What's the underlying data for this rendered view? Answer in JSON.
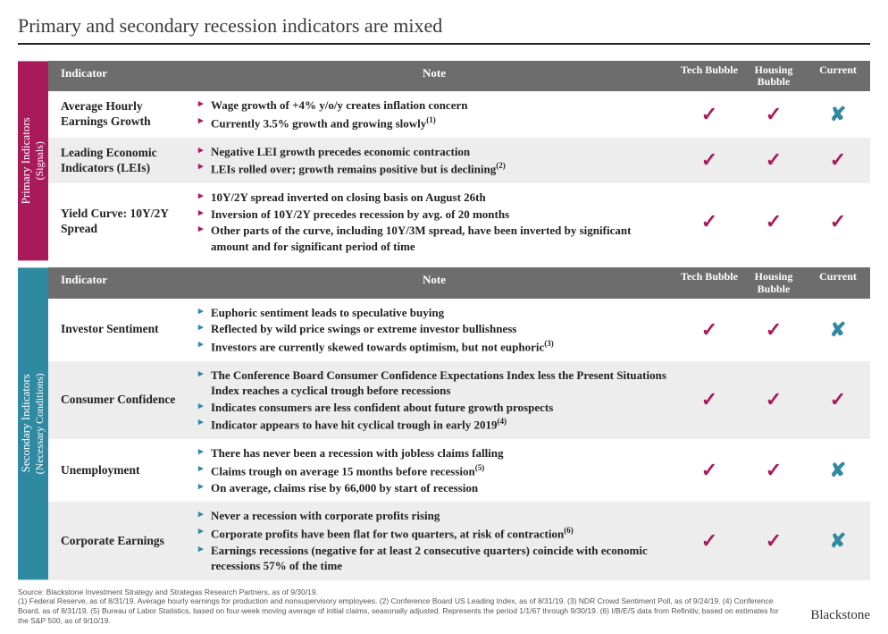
{
  "title": "Primary and secondary recession indicators are mixed",
  "headers": {
    "indicator": "Indicator",
    "note": "Note",
    "tech": "Tech Bubble",
    "housing": "Housing Bubble",
    "current": "Current"
  },
  "marks": {
    "check_glyph": "✓",
    "cross_glyph": "✘",
    "check_color": "#a91a5b",
    "cross_color": "#2f89a0"
  },
  "colors": {
    "primary_sidebar": "#a91a5b",
    "secondary_sidebar": "#2f89a0",
    "header_bg": "#6d6d6d",
    "alt_row_bg": "#ededed"
  },
  "groups": {
    "primary": {
      "sidebar_main": "Primary Indicators",
      "sidebar_sub": "(Signals)",
      "rows": [
        {
          "indicator": "Average Hourly Earnings Growth",
          "notes": [
            {
              "text": "Wage growth of +4% y/o/y creates inflation concern"
            },
            {
              "text": "Currently 3.5% growth and growing slowly",
              "sup": "(1)"
            }
          ],
          "tech": "check",
          "housing": "check",
          "current": "cross"
        },
        {
          "indicator": "Leading Economic Indicators (LEIs)",
          "notes": [
            {
              "text": "Negative LEI growth precedes economic contraction"
            },
            {
              "text": "LEIs rolled over; growth remains positive but is declining",
              "sup": "(2)"
            }
          ],
          "tech": "check",
          "housing": "check",
          "current": "check"
        },
        {
          "indicator": "Yield Curve: 10Y/2Y Spread",
          "notes": [
            {
              "text": "10Y/2Y spread inverted on closing basis on August 26th"
            },
            {
              "text": "Inversion of 10Y/2Y precedes recession by avg. of 20 months",
              "bold": true
            },
            {
              "text": "Other parts of the curve, including 10Y/3M spread, have been inverted by significant amount and for significant period of time"
            }
          ],
          "tech": "check",
          "housing": "check",
          "current": "check"
        }
      ]
    },
    "secondary": {
      "sidebar_main": "Secondary Indicators",
      "sidebar_sub": "(Necessary Conditions)",
      "rows": [
        {
          "indicator": "Investor Sentiment",
          "notes": [
            {
              "text": "Euphoric sentiment leads to speculative buying"
            },
            {
              "text": "Reflected by wild price swings or extreme investor bullishness"
            },
            {
              "text": "Investors are currently skewed towards optimism, but not euphoric",
              "sup": "(3)"
            }
          ],
          "tech": "check",
          "housing": "check",
          "current": "cross"
        },
        {
          "indicator": "Consumer Confidence",
          "notes": [
            {
              "text": "The Conference Board Consumer Confidence Expectations Index less the Present Situations Index reaches a cyclical trough before recessions"
            },
            {
              "text": "Indicates consumers are less confident about future growth prospects"
            },
            {
              "text": "Indicator appears to have hit cyclical trough in early 2019",
              "sup": "(4)"
            }
          ],
          "tech": "check",
          "housing": "check",
          "current": "check"
        },
        {
          "indicator": "Unemployment",
          "notes": [
            {
              "text": "There has never been a recession with jobless claims falling"
            },
            {
              "text": "Claims trough on average 15 months before recession",
              "sup": "(5)"
            },
            {
              "text": "On average, claims rise by 66,000 by start of recession"
            }
          ],
          "tech": "check",
          "housing": "check",
          "current": "cross"
        },
        {
          "indicator": "Corporate Earnings",
          "notes": [
            {
              "text": "Never a recession with corporate profits rising"
            },
            {
              "text": "Corporate profits have been flat for two quarters, at risk of contraction",
              "sup": "(6)"
            },
            {
              "text": "Earnings recessions (negative for at least 2 consecutive quarters) coincide with economic recessions 57% of the time"
            }
          ],
          "tech": "check",
          "housing": "check",
          "current": "cross"
        }
      ]
    }
  },
  "footer": {
    "source": "Source: Blackstone Investment Strategy and Strategas Research Partners, as of 9/30/19.",
    "notes": "(1) Federal Reserve, as of 8/31/19. Average hourly earnings for production and nonsupervisory employees. (2) Conference Board US Leading Index, as of 8/31/19. (3) NDR Crowd Sentiment Poll, as of 9/24/19. (4) Conference Board, as of 8/31/19. (5) Bureau of Labor Statistics, based on four-week moving average of initial claims, seasonally adjusted. Represents the period 1/1/67 through 9/30/19. (6) I/B/E/S data from Refinitiv, based on estimates for the S&P 500, as of 9/10/19.",
    "brand": "Blackstone"
  }
}
